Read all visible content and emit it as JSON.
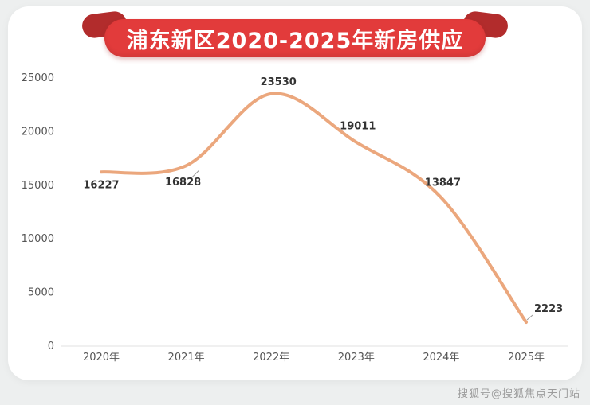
{
  "page": {
    "watermark": "搜狐号@搜狐焦点天门站"
  },
  "colors": {
    "page_bg": "#edefef",
    "card_bg": "#ffffff",
    "banner_red": "#e23b3b",
    "banner_fold_red": "#b22c2c",
    "line_orange": "#eba77d",
    "label_text": "#333333",
    "axis_text": "#555555",
    "axis_line": "#e2e2e2",
    "watermark_text": "#9c9c9c"
  },
  "chart_data": {
    "type": "line",
    "title": "浦东新区2020-2025年新房供应",
    "categories": [
      "2020年",
      "2021年",
      "2022年",
      "2023年",
      "2024年",
      "2025年"
    ],
    "values": [
      16227,
      16828,
      23530,
      19011,
      13847,
      2223
    ],
    "ylim": [
      0,
      25000
    ],
    "yticks": [
      0,
      5000,
      10000,
      15000,
      20000,
      25000
    ],
    "xlabel": "",
    "ylabel": "",
    "grid": false,
    "legend": "none",
    "smooth": true,
    "line_color": "#eba77d"
  }
}
